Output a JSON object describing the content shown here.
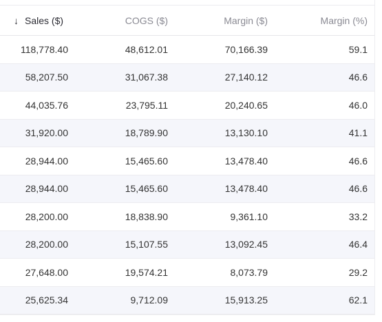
{
  "table": {
    "columns": [
      {
        "label": "Sales ($)",
        "sorted": "desc",
        "sort_icon": "↓"
      },
      {
        "label": "COGS ($)"
      },
      {
        "label": "Margin ($)"
      },
      {
        "label": "Margin (%)"
      }
    ],
    "rows": [
      [
        "118,778.40",
        "48,612.01",
        "70,166.39",
        "59.1"
      ],
      [
        "58,207.50",
        "31,067.38",
        "27,140.12",
        "46.6"
      ],
      [
        "44,035.76",
        "23,795.11",
        "20,240.65",
        "46.0"
      ],
      [
        "31,920.00",
        "18,789.90",
        "13,130.10",
        "41.1"
      ],
      [
        "28,944.00",
        "15,465.60",
        "13,478.40",
        "46.6"
      ],
      [
        "28,944.00",
        "15,465.60",
        "13,478.40",
        "46.6"
      ],
      [
        "28,200.00",
        "18,838.90",
        "9,361.10",
        "33.2"
      ],
      [
        "28,200.00",
        "15,107.55",
        "13,092.45",
        "46.4"
      ],
      [
        "27,648.00",
        "19,574.21",
        "8,073.79",
        "29.2"
      ],
      [
        "25,625.34",
        "9,712.09",
        "15,913.25",
        "62.1"
      ]
    ]
  }
}
